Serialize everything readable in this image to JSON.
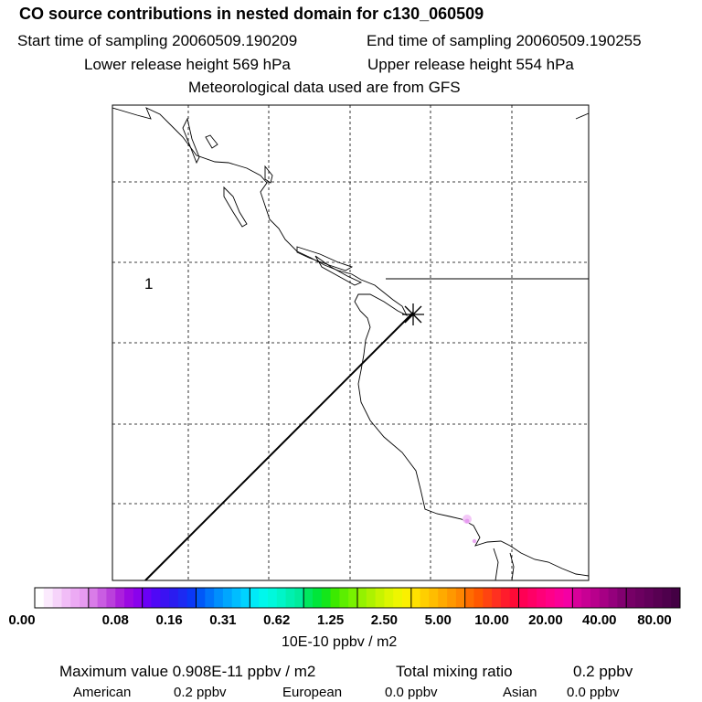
{
  "header": {
    "title": "CO  source contributions in nested domain for c130_060509",
    "start_time": "Start time of sampling 20060509.190209",
    "end_time": "End time of sampling 20060509.190255",
    "lower_release": "Lower release height  569 hPa",
    "upper_release": "Upper release height  554 hPa",
    "met_data": "Meteorological data used are from GFS"
  },
  "map": {
    "cell_label": "1",
    "receptor_marker": "asterisk"
  },
  "colorbar": {
    "tick_labels": [
      "0.00",
      "0.08",
      "0.16",
      "0.31",
      "0.62",
      "1.25",
      "2.50",
      "5.00",
      "10.00",
      "20.00",
      "40.00",
      "80.00"
    ],
    "unit": "10E-10 ppbv / m2",
    "colors": [
      [
        "#ffffff",
        "#fbeafd",
        "#f6d4fa",
        "#f1bdf7",
        "#ecaaf4",
        "#e79bf1"
      ],
      [
        "#d97ce8",
        "#c95de2",
        "#ba40dc",
        "#ab20dc",
        "#9b09e2",
        "#8a02ec"
      ],
      [
        "#6a00f6",
        "#4f08f6",
        "#3b12f2",
        "#2a1cf0",
        "#1c2af2",
        "#0a38f6"
      ],
      [
        "#0058f8",
        "#0074fb",
        "#008ffd",
        "#00a6fe",
        "#00bdff",
        "#00d3ff"
      ],
      [
        "#00eaf8",
        "#00f7ec",
        "#00f8dc",
        "#00f5c8",
        "#00f0b0",
        "#00ec9c"
      ],
      [
        "#00e85e",
        "#00e63a",
        "#14e61a",
        "#3cea00",
        "#5cee00",
        "#78f200"
      ],
      [
        "#94f200",
        "#adf200",
        "#c6f400",
        "#dcf600",
        "#eef600",
        "#fbf000"
      ],
      [
        "#ffe100",
        "#ffcf00",
        "#ffbd00",
        "#ffaa00",
        "#ff9800",
        "#ff8600"
      ],
      [
        "#ff6c00",
        "#ff5800",
        "#ff4410",
        "#ff3020",
        "#ff1c2c",
        "#ff0a36"
      ],
      [
        "#ff0054",
        "#ff0066",
        "#ff0078",
        "#ff0088",
        "#fa0098",
        "#f400a4"
      ],
      [
        "#d8009a",
        "#c80094",
        "#b8008c",
        "#a60084",
        "#94007c",
        "#820070"
      ],
      [
        "#760066",
        "#6c0060",
        "#62005a",
        "#580052",
        "#4e004c",
        "#440044"
      ]
    ]
  },
  "stats": {
    "max_value": "Maximum value  0.908E-11 ppbv / m2",
    "total_label": "Total mixing ratio",
    "total_value": "0.2 ppbv",
    "regions": [
      {
        "name": "American",
        "value": "0.2 ppbv"
      },
      {
        "name": "European",
        "value": "0.0 ppbv"
      },
      {
        "name": "Asian",
        "value": "0.0 ppbv"
      }
    ]
  }
}
